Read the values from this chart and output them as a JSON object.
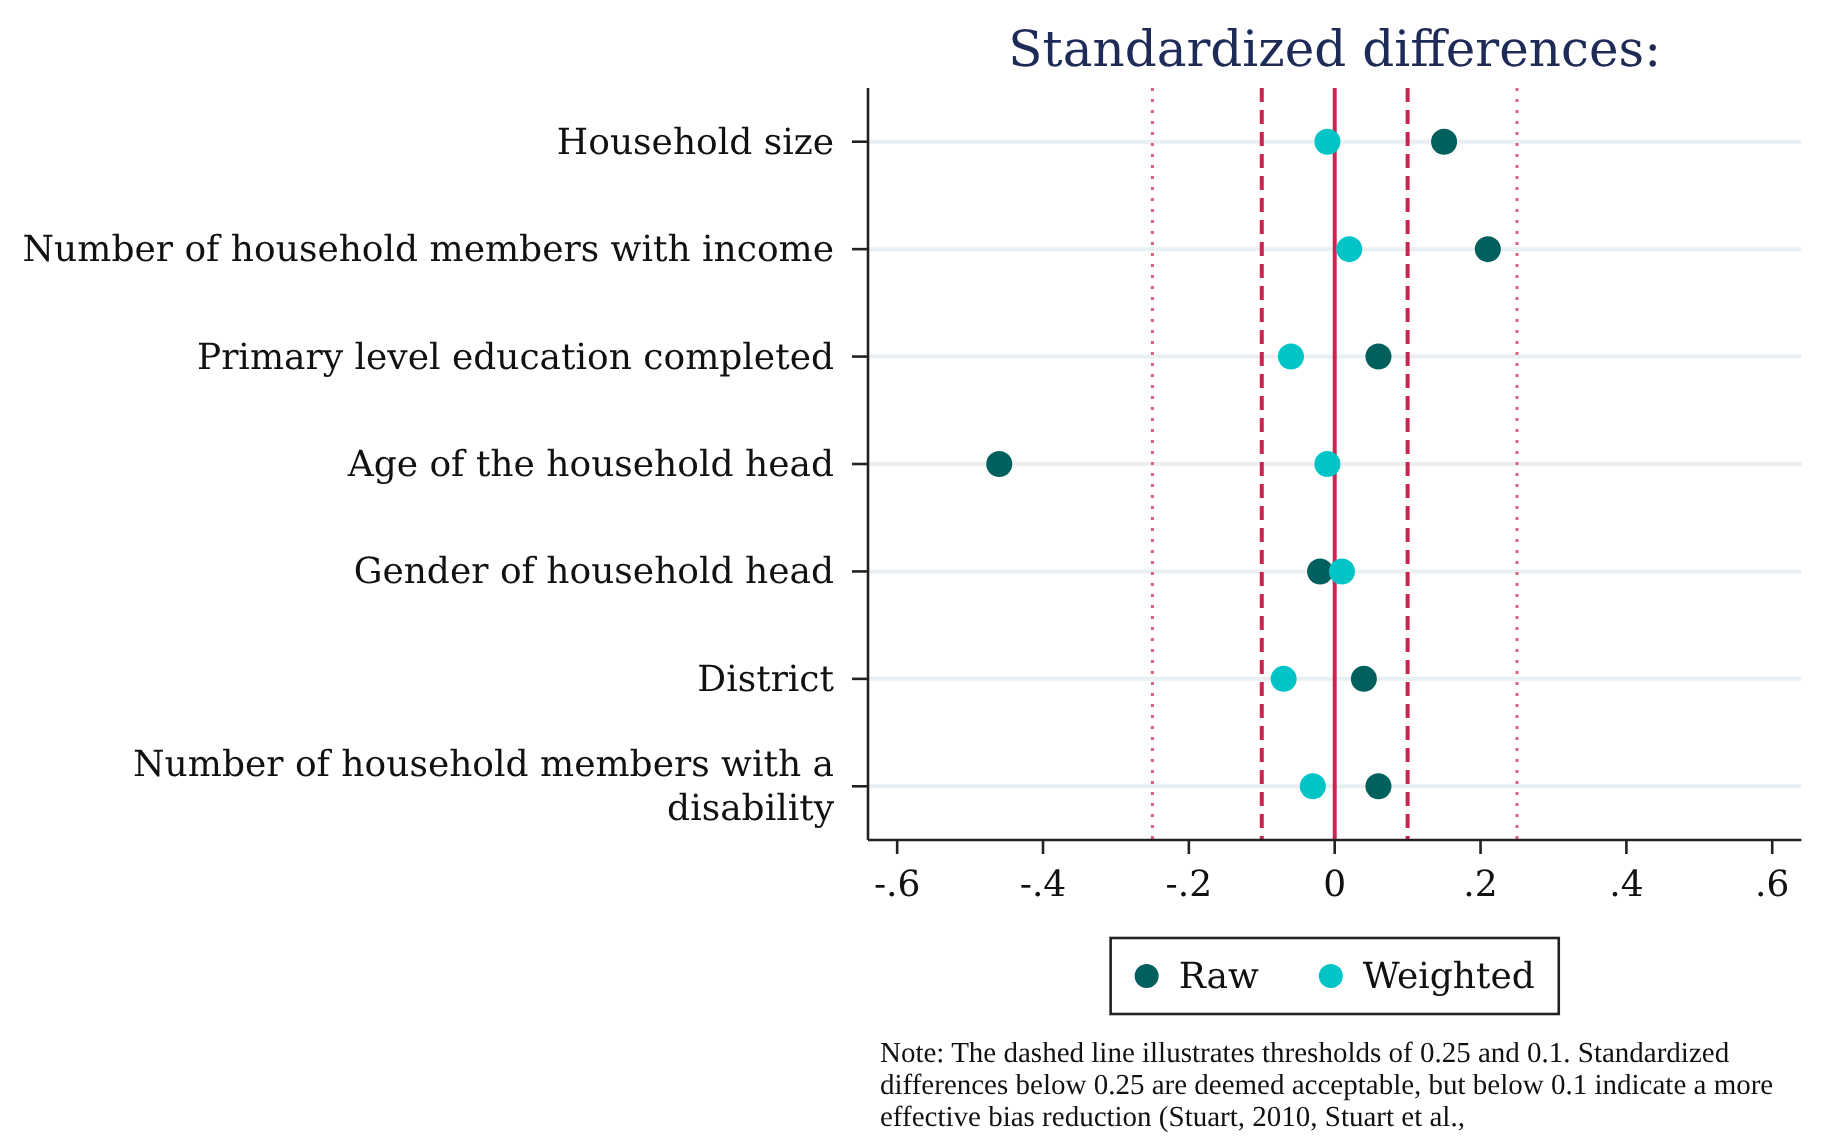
{
  "chart_data": {
    "type": "scatter",
    "orientation": "horizontal",
    "title": "Standardized differences:",
    "categories": [
      "Household size",
      "Number of household members with income",
      "Primary level education completed",
      "Age of the household head",
      "Gender of household head",
      "District",
      "Number of household members with a disability"
    ],
    "series": [
      {
        "name": "Raw",
        "color": "#00605d",
        "values": [
          0.15,
          0.21,
          0.06,
          -0.46,
          -0.02,
          0.04,
          0.06
        ]
      },
      {
        "name": "Weighted",
        "color": "#00c4c6",
        "values": [
          -0.01,
          0.02,
          -0.06,
          -0.01,
          0.01,
          -0.07,
          -0.03
        ]
      }
    ],
    "xlim": [
      -0.64,
      0.64
    ],
    "xticks": [
      {
        "value": -0.6,
        "label": "-.6"
      },
      {
        "value": -0.4,
        "label": "-.4"
      },
      {
        "value": -0.2,
        "label": "-.2"
      },
      0,
      {
        "value": 0.2,
        "label": ".2"
      },
      {
        "value": 0.4,
        "label": ".4"
      },
      {
        "value": 0.6,
        "label": ".6"
      }
    ],
    "ref_lines": [
      {
        "axis": "x",
        "value": -0.25,
        "color": "#e0607f",
        "line_style": "dotted"
      },
      {
        "axis": "x",
        "value": -0.1,
        "color": "#c8264f",
        "line_style": "dashed"
      },
      {
        "axis": "x",
        "value": 0,
        "color": "#c8264f",
        "line_style": "solid"
      },
      {
        "axis": "x",
        "value": 0.1,
        "color": "#c8264f",
        "line_style": "dashed"
      },
      {
        "axis": "x",
        "value": 0.25,
        "color": "#e0607f",
        "line_style": "dotted"
      }
    ],
    "grid": "y",
    "legend": "bottom",
    "marker": "circle",
    "annotations": [
      "Note: The dashed line illustrates thresholds of 0.25 and 0.1. Standardized differences below 0.25 are deemed acceptable, but below 0.1 indicate a more effective bias reduction (Stuart, 2010, Stuart et al.,"
    ]
  }
}
